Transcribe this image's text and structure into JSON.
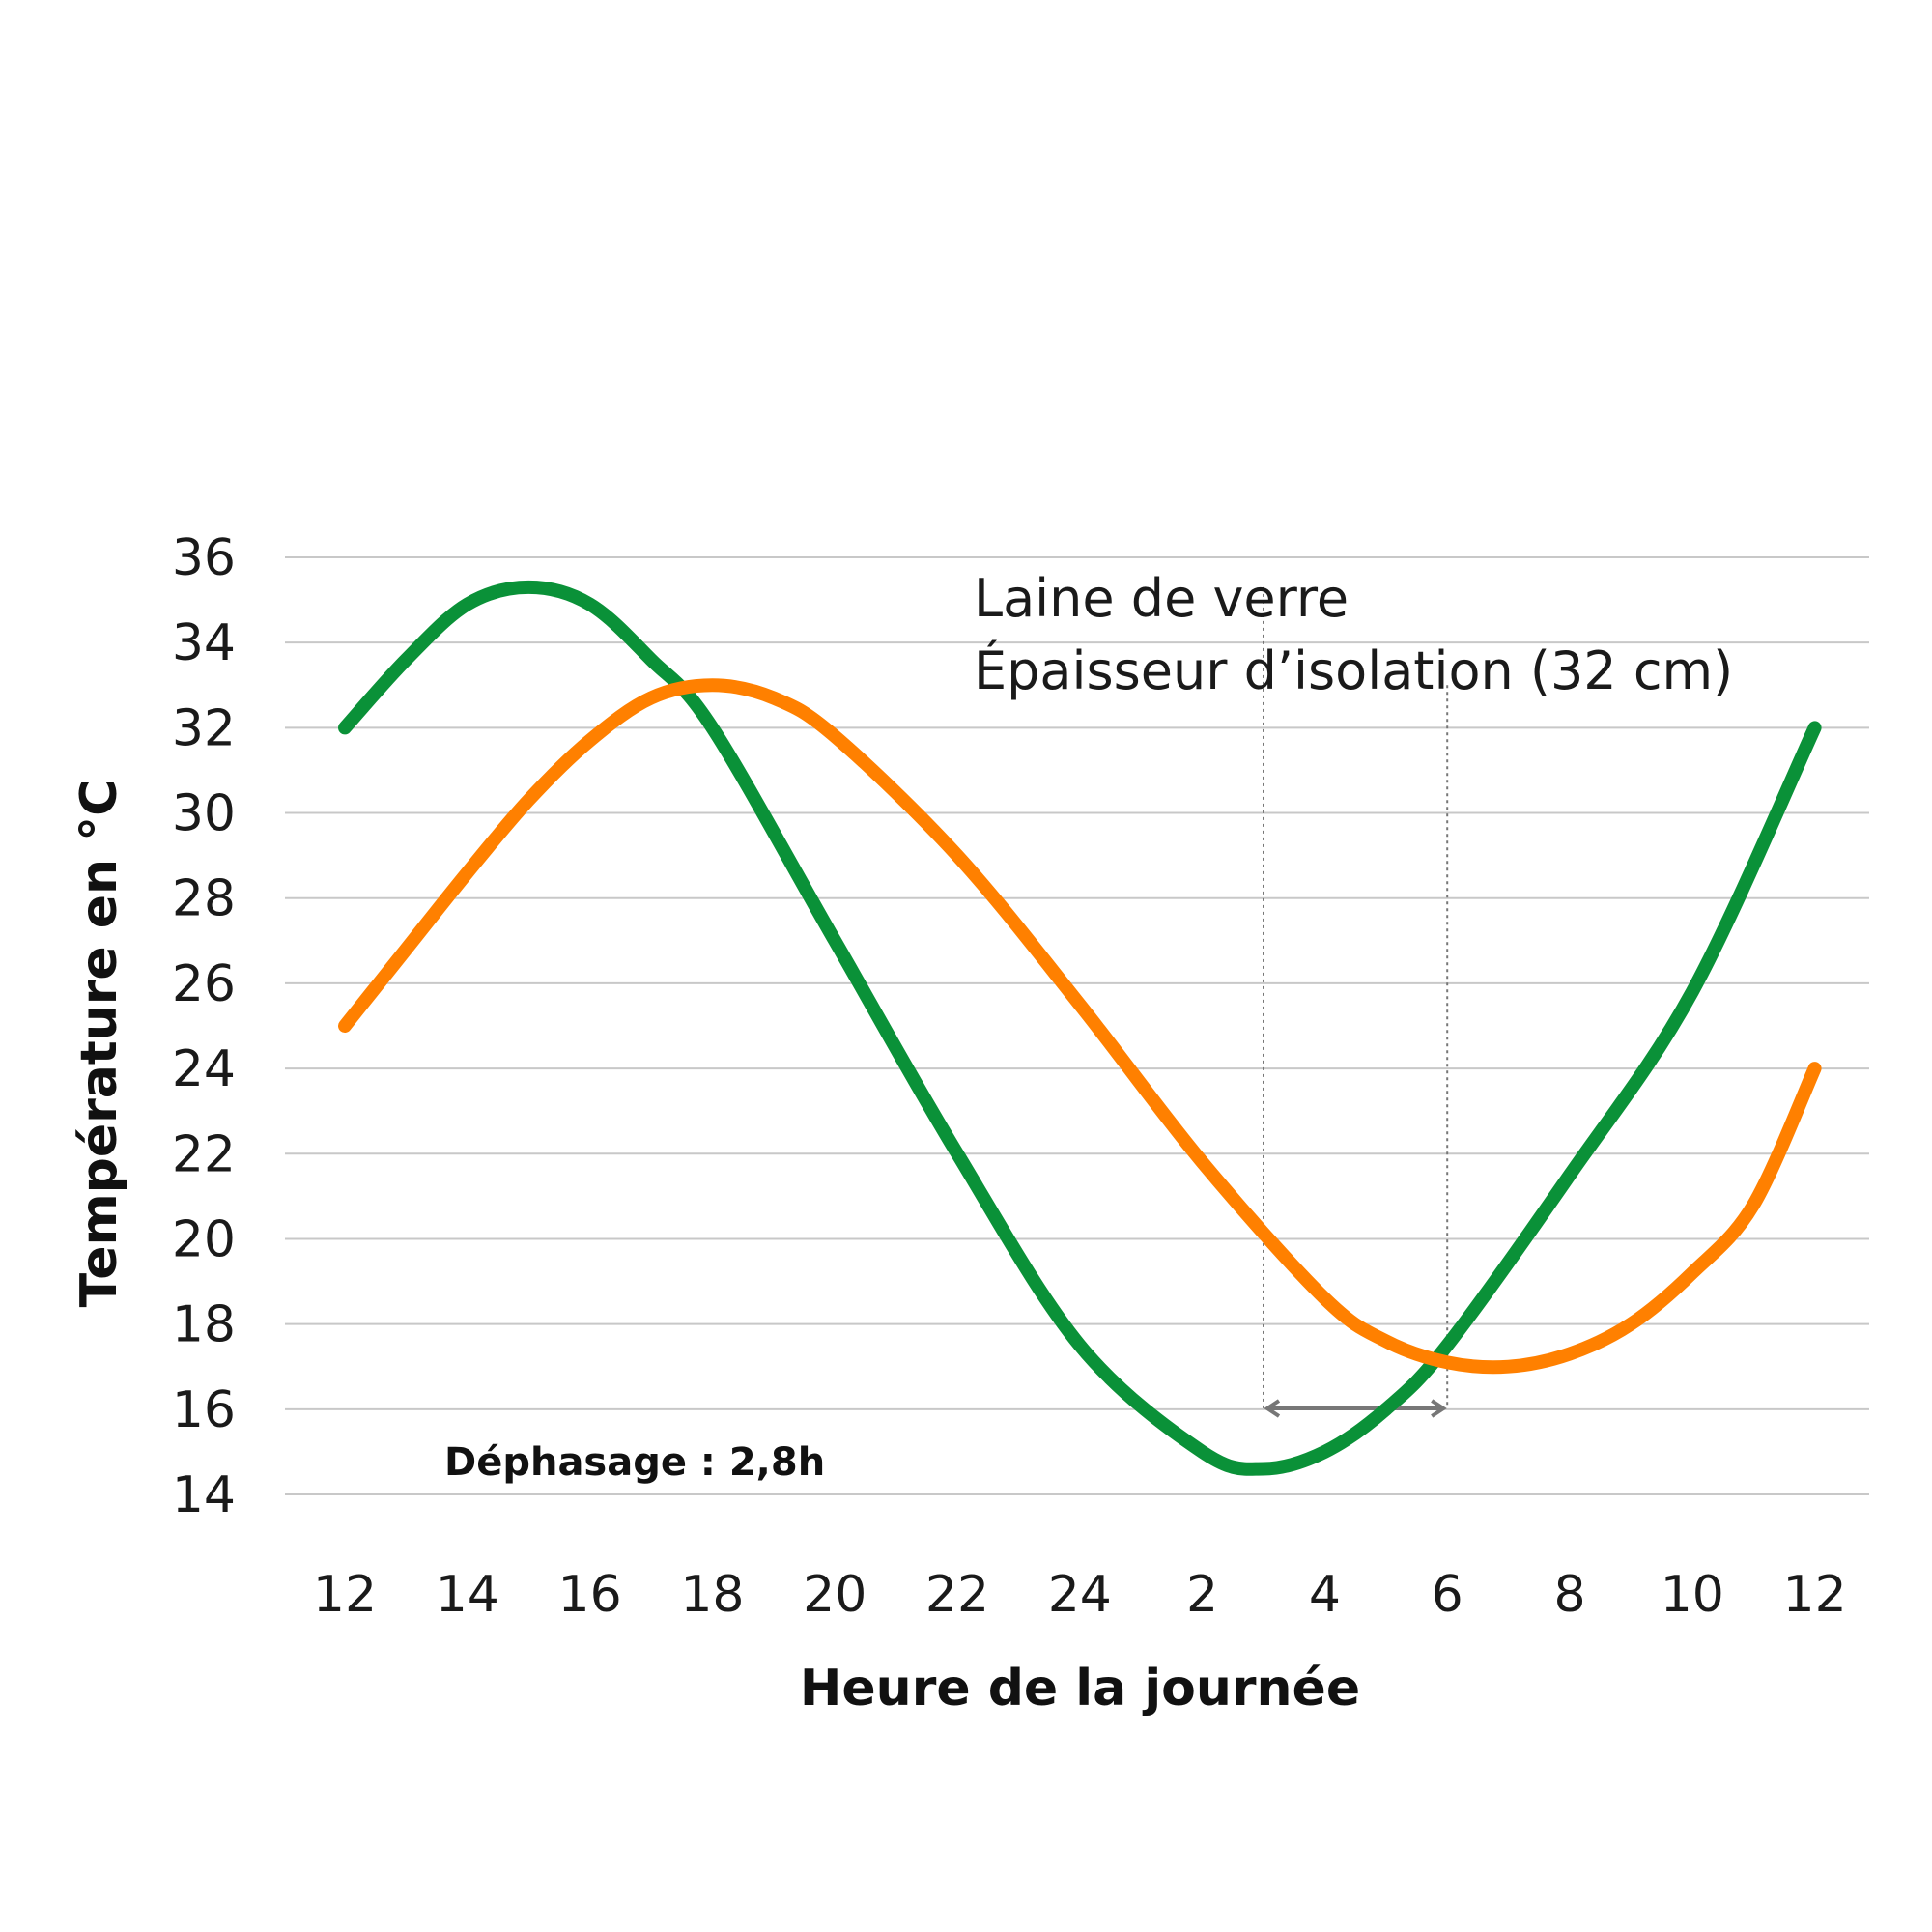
{
  "chart_data": {
    "type": "line",
    "xlabel": "Heure de la journée",
    "ylabel": "Température en °C",
    "x_tick_labels": [
      "12",
      "14",
      "16",
      "18",
      "20",
      "22",
      "24",
      "2",
      "4",
      "6",
      "8",
      "10",
      "12"
    ],
    "y_ticks": [
      14,
      16,
      18,
      20,
      22,
      24,
      26,
      28,
      30,
      32,
      34,
      36
    ],
    "ylim": [
      14,
      36
    ],
    "grid": true,
    "notes": [
      "Laine de verre",
      "Épaisseur d’isolation (32 cm)"
    ],
    "annotation": {
      "text": "Déphasage : 2,8h",
      "from_hour": 15,
      "to_hour": 18
    },
    "series": [
      {
        "color": "#0a9138",
        "points": [
          [
            0,
            32
          ],
          [
            1,
            33.6
          ],
          [
            2,
            34.9
          ],
          [
            3,
            35.3
          ],
          [
            4,
            34.9
          ],
          [
            5,
            33.6
          ],
          [
            6,
            32
          ],
          [
            8,
            27
          ],
          [
            10,
            22
          ],
          [
            12,
            17.5
          ],
          [
            14,
            15
          ],
          [
            15,
            14.6
          ],
          [
            16,
            15
          ],
          [
            17,
            16
          ],
          [
            18,
            17.5
          ],
          [
            20,
            21.5
          ],
          [
            22,
            25.8
          ],
          [
            24,
            32
          ]
        ]
      },
      {
        "color": "#ff8000",
        "points": [
          [
            0,
            25
          ],
          [
            1,
            26.8
          ],
          [
            2,
            28.6
          ],
          [
            3,
            30.3
          ],
          [
            4,
            31.7
          ],
          [
            5,
            32.7
          ],
          [
            6,
            33
          ],
          [
            7,
            32.7
          ],
          [
            8,
            31.8
          ],
          [
            10,
            29
          ],
          [
            12,
            25.5
          ],
          [
            14,
            21.8
          ],
          [
            16,
            18.6
          ],
          [
            17,
            17.6
          ],
          [
            18,
            17.1
          ],
          [
            19,
            17
          ],
          [
            20,
            17.3
          ],
          [
            21,
            18
          ],
          [
            22,
            19.2
          ],
          [
            23,
            20.8
          ],
          [
            24,
            24
          ]
        ]
      }
    ]
  }
}
